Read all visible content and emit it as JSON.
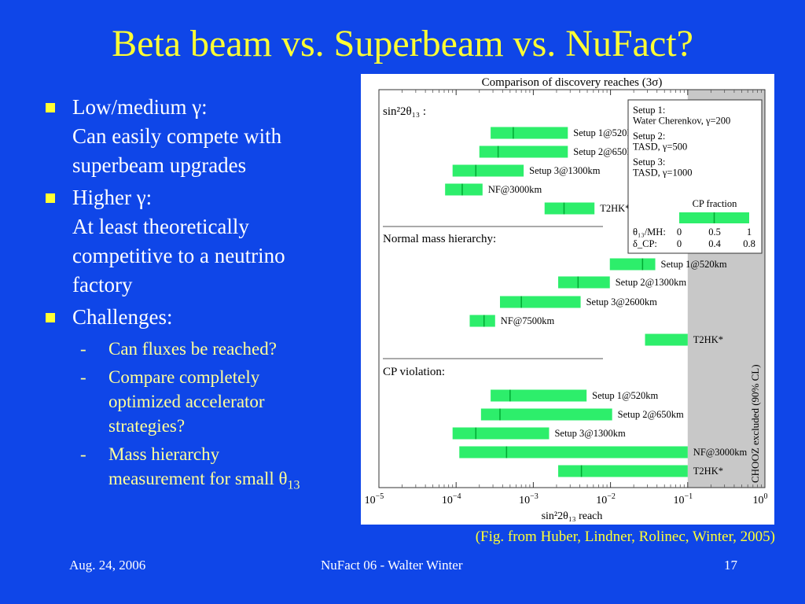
{
  "slide": {
    "title": "Beta beam vs. Superbeam vs. NuFact?",
    "bullets": [
      {
        "lines": [
          "Low/medium γ:",
          "Can easily compete with",
          "superbeam upgrades"
        ]
      },
      {
        "lines": [
          "Higher γ:",
          "At least theoretically",
          "competitive to a neutrino",
          "factory"
        ]
      },
      {
        "lines": [
          "Challenges:"
        ]
      }
    ],
    "subbullets": [
      {
        "dash": "-",
        "lines": [
          "Can fluxes be reached?"
        ]
      },
      {
        "dash": "-",
        "lines": [
          "Compare completely",
          "optimized accelerator",
          "strategies?"
        ]
      },
      {
        "dash": "-",
        "lines": [
          "Mass hierarchy"
        ],
        "last_line": "measurement for small θ",
        "last_sub": "13"
      }
    ],
    "caption": "(Fig. from Huber, Lindner, Rolinec, Winter, 2005)",
    "footer": {
      "left": "Aug. 24, 2006",
      "center": "NuFact 06 - Walter Winter",
      "right": "17"
    }
  },
  "chart_data": {
    "type": "bar",
    "orientation": "horizontal",
    "title": "Comparison of discovery reaches (3σ)",
    "xlabel": "sin²2θ₁₃ reach",
    "xscale": "log",
    "xlim": [
      1e-05,
      1
    ],
    "xticks": [
      {
        "value": 1e-05,
        "base": "10",
        "exp": "−5"
      },
      {
        "value": 0.0001,
        "base": "10",
        "exp": "−4"
      },
      {
        "value": 0.001,
        "base": "10",
        "exp": "−3"
      },
      {
        "value": 0.01,
        "base": "10",
        "exp": "−2"
      },
      {
        "value": 0.1,
        "base": "10",
        "exp": "−1"
      },
      {
        "value": 1,
        "base": "10",
        "exp": "0"
      }
    ],
    "bar_color": "#2dee6b",
    "groups": [
      {
        "name": "sin²2θ₁₃ :",
        "bars": [
          {
            "label": "Setup 1@520km",
            "min": 0.00028,
            "max": 0.0028,
            "mid": 0.00055
          },
          {
            "label": "Setup 2@650km",
            "min": 0.0002,
            "max": 0.0028,
            "mid": 0.00035
          },
          {
            "label": "Setup 3@1300km",
            "min": 9e-05,
            "max": 0.00075,
            "mid": 0.00018
          },
          {
            "label": "NF@3000km",
            "min": 7.2e-05,
            "max": 0.00022,
            "mid": 0.00012
          },
          {
            "label": "T2HK*",
            "min": 0.0014,
            "max": 0.0062,
            "mid": 0.0025
          }
        ]
      },
      {
        "name": "Normal mass hierarchy:",
        "bars": [
          {
            "label": "Setup 1@520km",
            "min": 0.0098,
            "max": 0.038,
            "mid": 0.026
          },
          {
            "label": "Setup 2@1300km",
            "min": 0.0021,
            "max": 0.0098,
            "mid": 0.0038
          },
          {
            "label": "Setup 3@2600km",
            "min": 0.00037,
            "max": 0.0041,
            "mid": 0.0007
          },
          {
            "label": "NF@7500km",
            "min": 0.00015,
            "max": 0.00032,
            "mid": 0.00023
          },
          {
            "label": "T2HK*",
            "min": 0.028,
            "max": 0.1,
            "mid": null
          }
        ]
      },
      {
        "name": "CP violation:",
        "bars": [
          {
            "label": "Setup 1@520km",
            "min": 0.00028,
            "max": 0.0049,
            "mid": 0.0005
          },
          {
            "label": "Setup 2@650km",
            "min": 0.00021,
            "max": 0.0105,
            "mid": 0.00037
          },
          {
            "label": "Setup 3@1300km",
            "min": 9e-05,
            "max": 0.0016,
            "mid": 0.00018
          },
          {
            "label": "NF@3000km",
            "min": 0.00011,
            "max": 0.1,
            "mid": 0.00045
          },
          {
            "label": "T2HK*",
            "min": 0.0021,
            "max": 0.1,
            "mid": 0.0042
          }
        ]
      }
    ],
    "excluded_region": {
      "from": 0.1,
      "to": 1,
      "label": "CHOOZ excluded (90% CL)",
      "color": "#c8c8c8"
    },
    "legend": {
      "placement": "top-right",
      "lines": [
        "Setup 1:",
        "Water Cherenkov, γ=200",
        "Setup 2:",
        "TASD, γ=500",
        "Setup 3:",
        "TASD, γ=1000"
      ],
      "cp_fraction_title": "CP fraction",
      "cp_fraction_bar": {
        "min": 0,
        "max": 1,
        "mid": 0.5
      },
      "theta_label": "θ₁₃/MH:",
      "theta_values": [
        "0",
        "0.5",
        "1"
      ],
      "delta_label": "δ_CP:",
      "delta_values": [
        "0",
        "0.4",
        "0.8"
      ]
    }
  }
}
